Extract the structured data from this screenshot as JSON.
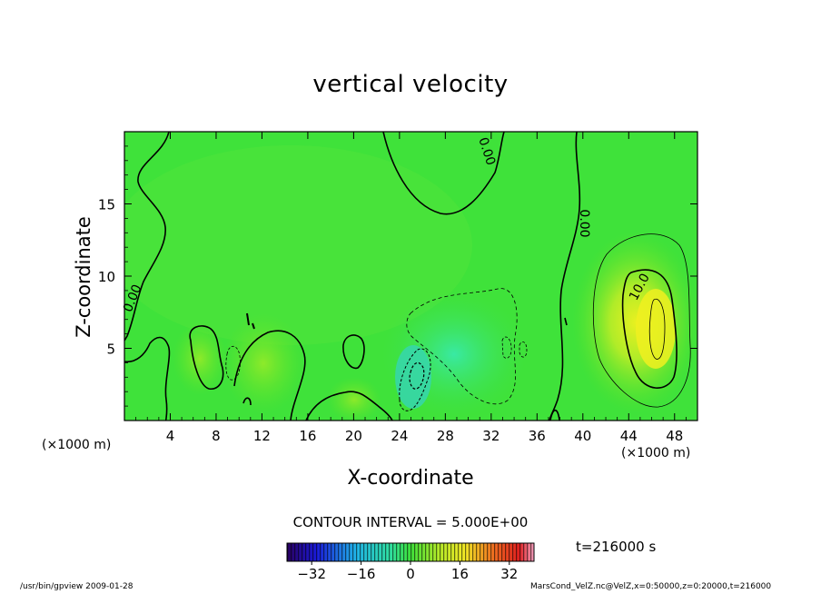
{
  "chart_data": {
    "type": "heatmap",
    "title": "vertical velocity",
    "xlabel": "X-coordinate",
    "ylabel": "Z-coordinate",
    "x_unit_label": "(×1000 m)",
    "xlim": [
      0,
      50
    ],
    "ylim": [
      0,
      20
    ],
    "x_ticks": [
      4,
      8,
      12,
      16,
      20,
      24,
      28,
      32,
      36,
      40,
      44,
      48
    ],
    "y_ticks": [
      5,
      10,
      15
    ],
    "contour_interval_text": "CONTOUR INTERVAL = 5.000E+00",
    "contour_labels": [
      "0.00",
      "0.00",
      "0.00",
      "10.0"
    ],
    "colorbar": {
      "min": -40,
      "max": 40,
      "tick_values": [
        -32,
        -16,
        0,
        16,
        32
      ],
      "tick_labels": [
        "−32",
        "−16",
        "0",
        "16",
        "32"
      ]
    },
    "time_text": "t=216000 s",
    "grid": false
  },
  "footer": {
    "left": "/usr/bin/gpview  2009-01-28",
    "right": "MarsCond_VelZ.nc@VelZ,x=0:50000,z=0:20000,t=216000"
  }
}
